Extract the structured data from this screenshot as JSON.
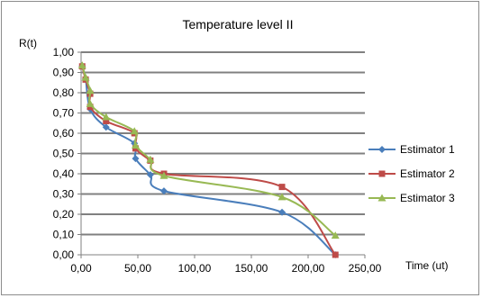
{
  "chart_data": {
    "type": "line",
    "title": "Temperature level II",
    "xlabel": "Time (ut)",
    "ylabel": "R(t)",
    "xlim": [
      0,
      250
    ],
    "ylim": [
      0,
      1
    ],
    "x_ticks": [
      "0,00",
      "50,00",
      "100,00",
      "150,00",
      "200,00",
      "250,00"
    ],
    "y_ticks": [
      "0,00",
      "0,10",
      "0,20",
      "0,30",
      "0,40",
      "0,50",
      "0,60",
      "0,70",
      "0,80",
      "0,90",
      "1,00"
    ],
    "grid": "horizontal",
    "legend_position": "right",
    "series": [
      {
        "name": "Estimator 1",
        "color": "#4a7ebb",
        "marker": "diamond",
        "points": [
          [
            1,
            0.93
          ],
          [
            4,
            0.87
          ],
          [
            8,
            0.72
          ],
          [
            22,
            0.63
          ],
          [
            47,
            0.55
          ],
          [
            48,
            0.475
          ],
          [
            61,
            0.395
          ],
          [
            73,
            0.315
          ],
          [
            177,
            0.21
          ],
          [
            224,
            0.0
          ]
        ]
      },
      {
        "name": "Estimator 2",
        "color": "#be4b48",
        "marker": "square",
        "points": [
          [
            1,
            0.93
          ],
          [
            4,
            0.865
          ],
          [
            8,
            0.795
          ],
          [
            8,
            0.73
          ],
          [
            22,
            0.66
          ],
          [
            47,
            0.6
          ],
          [
            48,
            0.525
          ],
          [
            61,
            0.465
          ],
          [
            73,
            0.4
          ],
          [
            177,
            0.335
          ],
          [
            224,
            0.0
          ]
        ]
      },
      {
        "name": "Estimator 3",
        "color": "#98b954",
        "marker": "triangle",
        "points": [
          [
            1,
            0.935
          ],
          [
            4,
            0.875
          ],
          [
            8,
            0.81
          ],
          [
            8,
            0.745
          ],
          [
            22,
            0.68
          ],
          [
            47,
            0.61
          ],
          [
            48,
            0.54
          ],
          [
            61,
            0.47
          ],
          [
            73,
            0.39
          ],
          [
            177,
            0.285
          ],
          [
            224,
            0.095
          ]
        ]
      }
    ]
  }
}
